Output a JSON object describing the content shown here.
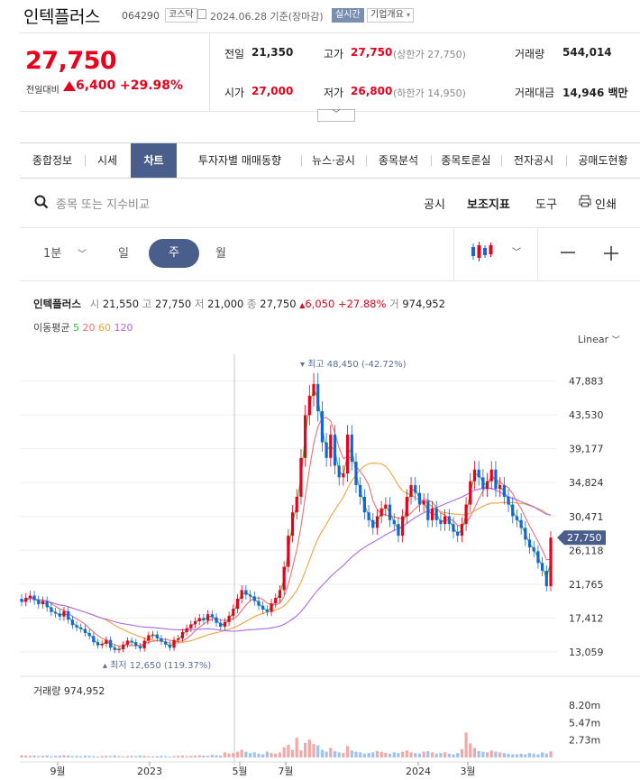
{
  "header": {
    "name": "인텍플러스",
    "code": "064290",
    "market": "코스닥",
    "date": "2024.06.28 기준(장마감)",
    "realtime_label": "실시간",
    "company_label": "기업개요"
  },
  "price": {
    "current": "27,750",
    "change_label": "전일대비",
    "change": "6,400",
    "change_pct": "+29.98%"
  },
  "quote": {
    "prev_label": "전일",
    "prev": "21,350",
    "high_label": "고가",
    "high": "27,750",
    "upper_limit": "(상한가 27,750)",
    "volume_label": "거래량",
    "volume": "544,014",
    "open_label": "시가",
    "open": "27,000",
    "low_label": "저가",
    "low": "26,800",
    "lower_limit": "(하한가 14,950)",
    "amount_label": "거래대금",
    "amount": "14,946 백만"
  },
  "tabs": [
    "종합정보",
    "시세",
    "차트",
    "투자자별 매매동향",
    "뉴스·공시",
    "종목분석",
    "종목토론실",
    "전자공시",
    "공매도현황"
  ],
  "toolbar": {
    "search_placeholder": "종목 또는 지수비교",
    "disclosure": "공시",
    "indicators": "보조지표",
    "tools": "도구",
    "print": "인쇄"
  },
  "periods": {
    "minute": "1분",
    "day": "일",
    "week": "주",
    "month": "월"
  },
  "info": {
    "name": "인텍플러스",
    "open_l": "시",
    "open": "21,550",
    "high_l": "고",
    "high": "27,750",
    "low_l": "저",
    "low": "21,000",
    "close_l": "종",
    "close": "27,750",
    "change": "6,050",
    "pct": "+27.88%",
    "vol_l": "거",
    "vol": "974,952"
  },
  "ma": {
    "label": "이동평균",
    "p5": "5",
    "p20": "20",
    "p60": "60",
    "p120": "120"
  },
  "scale_mode": "Linear",
  "colors": {
    "up": "#e8001c",
    "down": "#1565d8",
    "ma5": "#3dbb3d",
    "ma20": "#f07070",
    "ma60": "#f5a040",
    "ma120": "#a86ae8",
    "accent": "#4a5e8c"
  },
  "chart_data": {
    "type": "candlestick",
    "title": "",
    "price_axis_ticks": [
      "47,883",
      "43,530",
      "39,177",
      "34,824",
      "30,471",
      "26,118",
      "21,765",
      "17,412",
      "13,059"
    ],
    "price_range": [
      10500,
      50500
    ],
    "x_labels": [
      "9월",
      "2023",
      "5월",
      "7월",
      "2024",
      "3월"
    ],
    "current_price_label": "27,750",
    "max_annotation": "최고 48,450 (-42.72%)",
    "min_annotation": "최저 12,650 (119.37%)",
    "volume_label": "거래량",
    "volume_value": "974,952",
    "volume_ticks": [
      "8.20m",
      "5.47m",
      "2.73m"
    ],
    "weekly_close": [
      19500,
      20000,
      20300,
      19700,
      19200,
      19600,
      18800,
      18200,
      18000,
      17600,
      18300,
      17200,
      16500,
      16200,
      16000,
      15500,
      15100,
      14300,
      13900,
      14100,
      14600,
      13600,
      13300,
      13400,
      14000,
      14500,
      14300,
      13800,
      13500,
      14500,
      15200,
      15300,
      14800,
      14400,
      14000,
      13600,
      14600,
      14800,
      15600,
      16100,
      16600,
      17000,
      17400,
      17100,
      17900,
      17500,
      16800,
      16300,
      16900,
      17700,
      18600,
      19900,
      21000,
      20400,
      20200,
      19600,
      19000,
      18500,
      18200,
      19300,
      20000,
      21000,
      24000,
      28000,
      31000,
      33000,
      38000,
      43500,
      46000,
      47500,
      44000,
      40000,
      38000,
      41000,
      37000,
      35500,
      36000,
      41000,
      37500,
      34500,
      33000,
      31000,
      30000,
      29000,
      30500,
      31500,
      32000,
      30000,
      29500,
      28000,
      30500,
      33000,
      34500,
      33500,
      32000,
      32500,
      30000,
      31500,
      30000,
      29500,
      30500,
      29500,
      28500,
      28000,
      29500,
      32000,
      35000,
      36500,
      35500,
      34000,
      35000,
      36500,
      34000,
      34500,
      33000,
      32000,
      30500,
      30000,
      29000,
      27500,
      26500,
      26000,
      24500,
      23500,
      21500,
      27750
    ],
    "weekly_volume_m": [
      0.35,
      0.3,
      0.25,
      0.3,
      0.2,
      0.25,
      0.3,
      0.2,
      0.25,
      0.3,
      0.35,
      0.3,
      0.2,
      0.25,
      0.2,
      0.3,
      0.25,
      0.2,
      0.15,
      0.2,
      0.25,
      0.2,
      0.3,
      0.2,
      0.15,
      0.2,
      0.25,
      0.2,
      0.3,
      0.25,
      0.2,
      0.15,
      0.2,
      0.25,
      0.2,
      0.15,
      0.2,
      0.25,
      0.3,
      0.2,
      0.25,
      0.3,
      0.35,
      0.3,
      0.25,
      0.4,
      0.35,
      0.3,
      0.8,
      0.6,
      0.7,
      0.9,
      1.2,
      0.9,
      0.7,
      0.8,
      0.6,
      0.5,
      0.9,
      0.7,
      0.6,
      0.8,
      1.6,
      2.0,
      1.2,
      3.1,
      1.1,
      2.3,
      2.8,
      2.1,
      1.9,
      1.2,
      0.9,
      1.5,
      1.0,
      0.8,
      0.7,
      1.8,
      1.1,
      0.9,
      0.8,
      0.6,
      0.7,
      0.8,
      1.0,
      0.9,
      0.7,
      0.6,
      0.8,
      0.7,
      0.9,
      1.1,
      0.8,
      0.7,
      0.6,
      0.9,
      1.0,
      0.8,
      0.6,
      0.7,
      0.8,
      0.6,
      0.5,
      0.7,
      1.3,
      3.9,
      2.2,
      1.5,
      1.0,
      0.9,
      0.8,
      1.1,
      0.9,
      0.8,
      0.7,
      0.6,
      0.5,
      0.5,
      0.6,
      0.5,
      0.7,
      0.6,
      0.5,
      0.8,
      0.6,
      0.97
    ]
  }
}
